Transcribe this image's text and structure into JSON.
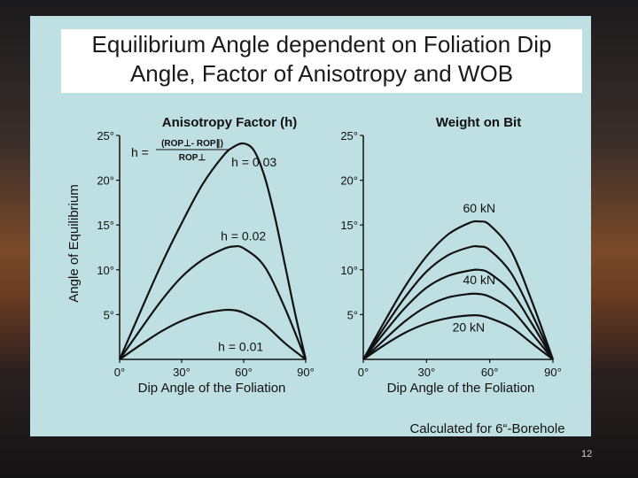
{
  "slide": {
    "title_line1": "Equilibrium Angle dependent on Foliation Dip",
    "title_line2": "Angle, Factor of Anisotropy and WOB",
    "footnote": "Calculated for 6“-Borehole",
    "page_number": "12"
  },
  "chart_data": [
    {
      "type": "line",
      "title": "Anisotropy  Factor (h)",
      "xlabel": "Dip Angle of the Foliation",
      "ylabel": "Angle of Equilibrium",
      "xlim": [
        0,
        90
      ],
      "ylim": [
        0,
        25
      ],
      "x_ticks": [
        "0°",
        "30°",
        "60°",
        "90°"
      ],
      "y_ticks": [
        "5°",
        "10°",
        "15°",
        "20°",
        "25°"
      ],
      "formula": {
        "lhs": "h =",
        "numerator": "(ROP⊥- ROP∥)",
        "denominator": "ROP⊥"
      },
      "series": [
        {
          "name": "h = 0.01",
          "points": [
            [
              0,
              0
            ],
            [
              10,
              1.6
            ],
            [
              20,
              3.1
            ],
            [
              30,
              4.3
            ],
            [
              40,
              5.1
            ],
            [
              50,
              5.5
            ],
            [
              55,
              5.5
            ],
            [
              60,
              5.2
            ],
            [
              70,
              3.9
            ],
            [
              80,
              1.8
            ],
            [
              90,
              0
            ]
          ]
        },
        {
          "name": "h = 0.02",
          "points": [
            [
              0,
              0
            ],
            [
              10,
              3.3
            ],
            [
              20,
              6.5
            ],
            [
              30,
              9.2
            ],
            [
              40,
              11.1
            ],
            [
              50,
              12.3
            ],
            [
              55,
              12.6
            ],
            [
              60,
              12.4
            ],
            [
              70,
              10.4
            ],
            [
              80,
              5.7
            ],
            [
              90,
              0
            ]
          ]
        },
        {
          "name": "h = 0.03",
          "points": [
            [
              0,
              0
            ],
            [
              10,
              5.3
            ],
            [
              20,
              10.5
            ],
            [
              30,
              15.2
            ],
            [
              40,
              19.5
            ],
            [
              50,
              22.7
            ],
            [
              55,
              23.7
            ],
            [
              60,
              24.1
            ],
            [
              65,
              23.3
            ],
            [
              70,
              20.5
            ],
            [
              75,
              16
            ],
            [
              80,
              10.5
            ],
            [
              85,
              5
            ],
            [
              90,
              0
            ]
          ]
        }
      ]
    },
    {
      "type": "line",
      "title": "Weight on Bit",
      "xlabel": "Dip Angle of the Foliation",
      "xlim": [
        0,
        90
      ],
      "ylim": [
        0,
        25
      ],
      "x_ticks": [
        "0°",
        "30°",
        "60°",
        "90°"
      ],
      "y_ticks": [
        "5°",
        "10°",
        "15°",
        "20°",
        "25°"
      ],
      "series": [
        {
          "name": "20 kN",
          "points": [
            [
              0,
              0
            ],
            [
              10,
              1.6
            ],
            [
              20,
              3
            ],
            [
              30,
              4
            ],
            [
              40,
              4.6
            ],
            [
              50,
              4.9
            ],
            [
              55,
              4.9
            ],
            [
              60,
              4.6
            ],
            [
              70,
              3.6
            ],
            [
              80,
              1.8
            ],
            [
              90,
              0
            ]
          ]
        },
        {
          "points": [
            [
              0,
              0
            ],
            [
              10,
              2.2
            ],
            [
              20,
              4.3
            ],
            [
              30,
              5.9
            ],
            [
              40,
              6.9
            ],
            [
              50,
              7.3
            ],
            [
              55,
              7.3
            ],
            [
              60,
              7
            ],
            [
              70,
              5.6
            ],
            [
              80,
              2.9
            ],
            [
              90,
              0
            ]
          ]
        },
        {
          "name": "40 kN",
          "points": [
            [
              0,
              0
            ],
            [
              10,
              3
            ],
            [
              20,
              5.8
            ],
            [
              30,
              8
            ],
            [
              40,
              9.3
            ],
            [
              50,
              9.9
            ],
            [
              55,
              10
            ],
            [
              60,
              9.6
            ],
            [
              70,
              7.6
            ],
            [
              80,
              4
            ],
            [
              90,
              0
            ]
          ]
        },
        {
          "points": [
            [
              0,
              0
            ],
            [
              10,
              3.6
            ],
            [
              20,
              7
            ],
            [
              30,
              9.8
            ],
            [
              40,
              11.6
            ],
            [
              50,
              12.5
            ],
            [
              55,
              12.6
            ],
            [
              60,
              12.2
            ],
            [
              70,
              9.7
            ],
            [
              80,
              5.1
            ],
            [
              90,
              0
            ]
          ]
        },
        {
          "name": "60 kN",
          "points": [
            [
              0,
              0
            ],
            [
              10,
              4.2
            ],
            [
              20,
              8.2
            ],
            [
              30,
              11.5
            ],
            [
              40,
              13.9
            ],
            [
              50,
              15.2
            ],
            [
              55,
              15.4
            ],
            [
              60,
              15
            ],
            [
              70,
              12.2
            ],
            [
              80,
              6.5
            ],
            [
              90,
              0
            ]
          ]
        }
      ]
    }
  ]
}
